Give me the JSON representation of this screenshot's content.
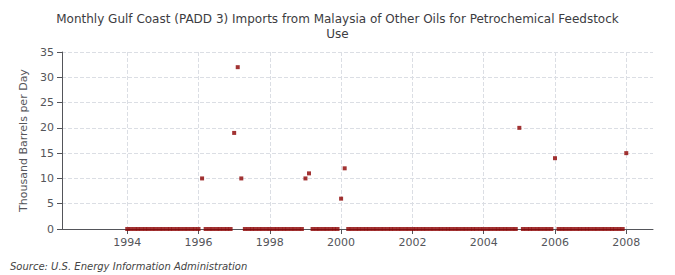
{
  "chart_data": {
    "type": "scatter",
    "title": "Monthly Gulf Coast (PADD 3) Imports from Malaysia of Other Oils for Petrochemical Feedstock\nUse",
    "ylabel": "Thousand Barrels per Day",
    "source": "Source: U.S. Energy Information Administration",
    "x": [
      1994.0,
      1994.1,
      1994.2,
      1994.3,
      1994.4,
      1994.5,
      1994.6,
      1994.7,
      1994.8,
      1994.9,
      1995.0,
      1995.1,
      1995.2,
      1995.3,
      1995.4,
      1995.5,
      1995.6,
      1995.7,
      1995.8,
      1995.9,
      1996.0,
      1996.1,
      1996.2,
      1996.3,
      1996.4,
      1996.5,
      1996.6,
      1996.7,
      1996.8,
      1996.9,
      1997.0,
      1997.1,
      1997.2,
      1997.3,
      1997.4,
      1997.5,
      1997.6,
      1997.7,
      1997.8,
      1997.9,
      1998.0,
      1998.1,
      1998.2,
      1998.3,
      1998.4,
      1998.5,
      1998.6,
      1998.7,
      1998.8,
      1998.9,
      1999.0,
      1999.1,
      1999.2,
      1999.3,
      1999.4,
      1999.5,
      1999.6,
      1999.7,
      1999.8,
      1999.9,
      2000.0,
      2000.1,
      2000.2,
      2000.3,
      2000.4,
      2000.5,
      2000.6,
      2000.7,
      2000.8,
      2000.9,
      2001.0,
      2001.1,
      2001.2,
      2001.3,
      2001.4,
      2001.5,
      2001.6,
      2001.7,
      2001.8,
      2001.9,
      2002.0,
      2002.1,
      2002.2,
      2002.3,
      2002.4,
      2002.5,
      2002.6,
      2002.7,
      2002.8,
      2002.9,
      2003.0,
      2003.1,
      2003.2,
      2003.3,
      2003.4,
      2003.5,
      2003.6,
      2003.7,
      2003.8,
      2003.9,
      2004.0,
      2004.1,
      2004.2,
      2004.3,
      2004.4,
      2004.5,
      2004.6,
      2004.7,
      2004.8,
      2004.9,
      2005.0,
      2005.1,
      2005.2,
      2005.3,
      2005.4,
      2005.5,
      2005.6,
      2005.7,
      2005.8,
      2005.9,
      2006.0,
      2006.1,
      2006.2,
      2006.3,
      2006.4,
      2006.5,
      2006.6,
      2006.7,
      2006.8,
      2006.9,
      2007.0,
      2007.1,
      2007.2,
      2007.3,
      2007.4,
      2007.5,
      2007.6,
      2007.7,
      2007.8,
      2007.9,
      2008.0
    ],
    "values": [
      0,
      0,
      0,
      0,
      0,
      0,
      0,
      0,
      0,
      0,
      0,
      0,
      0,
      0,
      0,
      0,
      0,
      0,
      0,
      0,
      0,
      10,
      0,
      0,
      0,
      0,
      0,
      0,
      0,
      0,
      19,
      32,
      10,
      0,
      0,
      0,
      0,
      0,
      0,
      0,
      0,
      0,
      0,
      0,
      0,
      0,
      0,
      0,
      0,
      0,
      10,
      11,
      0,
      0,
      0,
      0,
      0,
      0,
      0,
      0,
      6,
      12,
      0,
      0,
      0,
      0,
      0,
      0,
      0,
      0,
      0,
      0,
      0,
      0,
      0,
      0,
      0,
      0,
      0,
      0,
      0,
      0,
      0,
      0,
      0,
      0,
      0,
      0,
      0,
      0,
      0,
      0,
      0,
      0,
      0,
      0,
      0,
      0,
      0,
      0,
      0,
      0,
      0,
      0,
      0,
      0,
      0,
      0,
      0,
      0,
      20,
      0,
      0,
      0,
      0,
      0,
      0,
      0,
      0,
      0,
      14,
      0,
      0,
      0,
      0,
      0,
      0,
      0,
      0,
      0,
      0,
      0,
      0,
      0,
      0,
      0,
      0,
      0,
      0,
      0,
      15
    ],
    "color": "#8b0000",
    "marker": "square",
    "xlim": [
      1992.17,
      2008.75
    ],
    "xticks": [
      1994,
      1996,
      1998,
      2000,
      2002,
      2004,
      2006,
      2008
    ],
    "ylim": [
      0,
      35
    ],
    "yticks": [
      0,
      5,
      10,
      15,
      20,
      25,
      30,
      35
    ],
    "grid": true
  }
}
